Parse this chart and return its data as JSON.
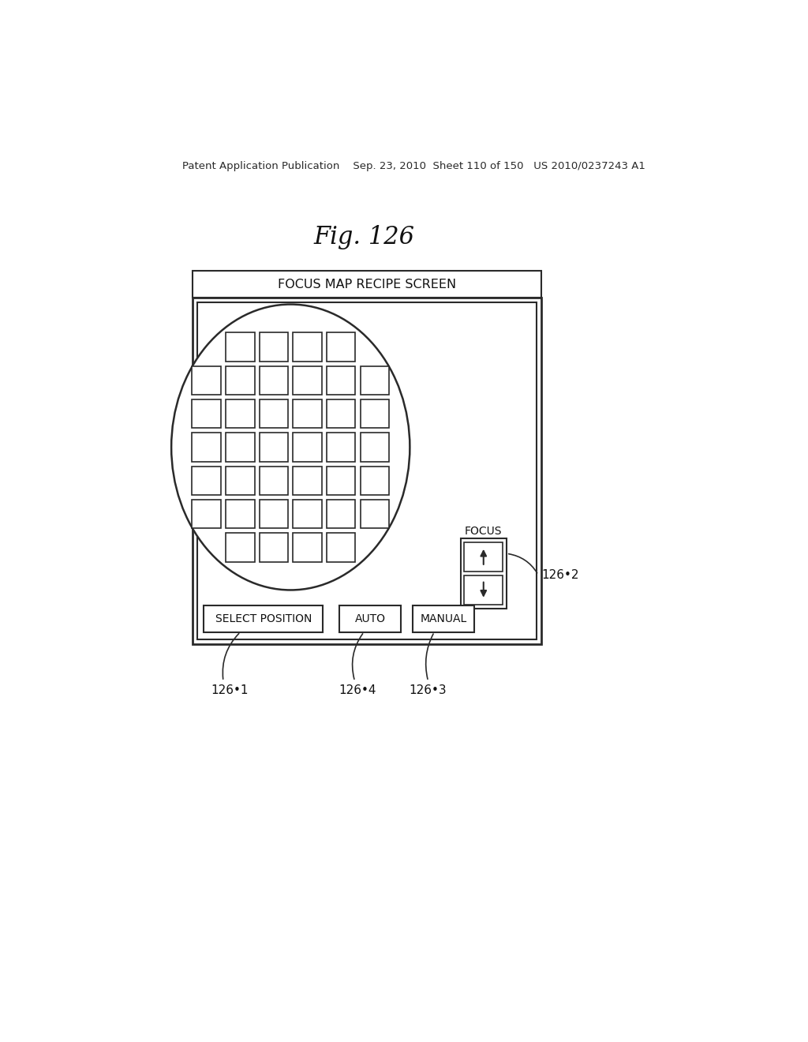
{
  "bg_color": "#ffffff",
  "header_text": "Patent Application Publication    Sep. 23, 2010  Sheet 110 of 150   US 2010/0237243 A1",
  "fig_label": "Fig. 126",
  "title_bar_text": "FOCUS MAP RECIPE SCREEN",
  "focus_label": "FOCUS",
  "btn1_text": "SELECT POSITION",
  "btn2_text": "AUTO",
  "btn3_text": "MANUAL",
  "ref1": "126•1",
  "ref2": "126•2",
  "ref3": "126•3",
  "ref4": "126•4"
}
